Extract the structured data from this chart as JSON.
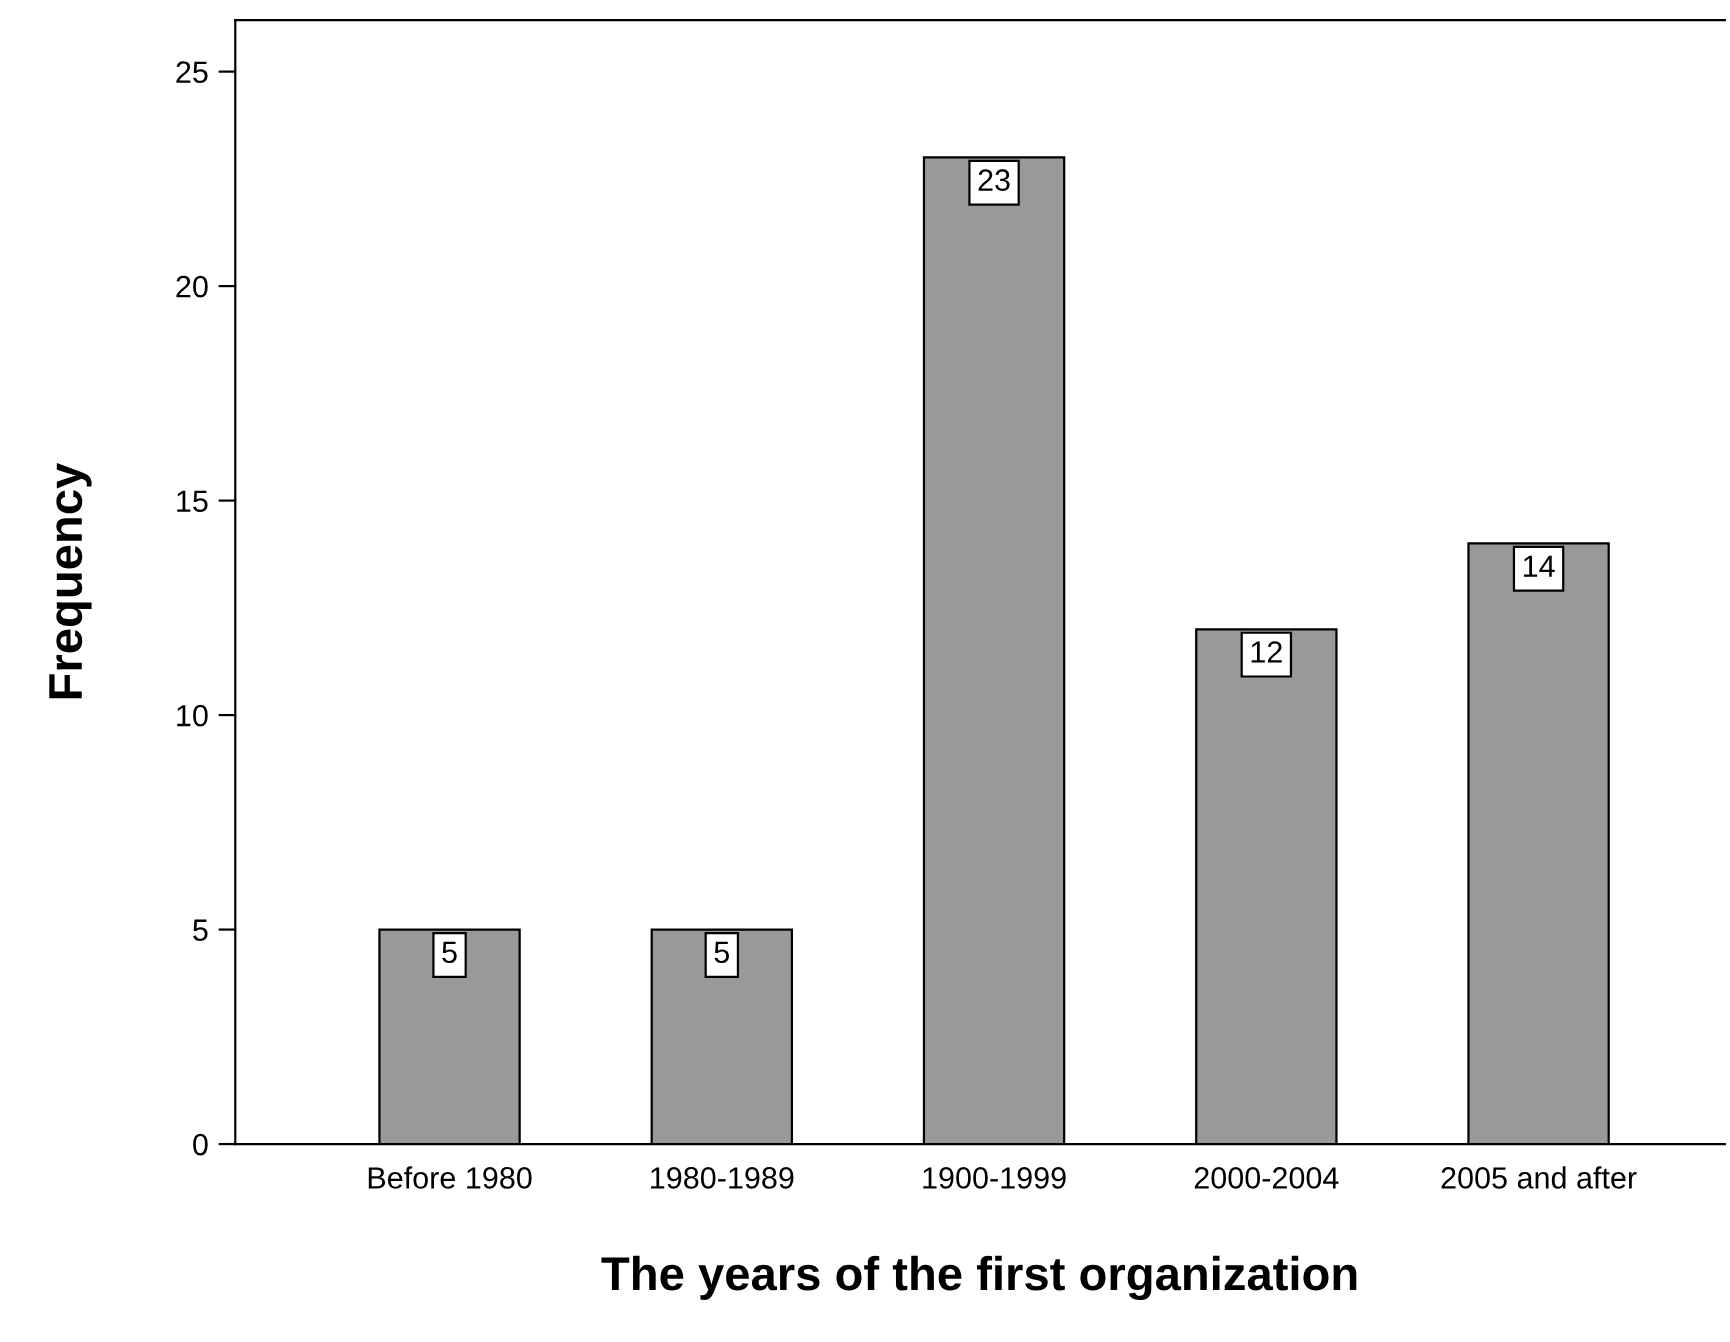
{
  "chart_data": {
    "type": "bar",
    "xlabel": "The years of the first organization",
    "ylabel": "Frequency",
    "categories": [
      "Before 1980",
      "1980-1989",
      "1900-1999",
      "2000-2004",
      "2005 and after"
    ],
    "values": [
      5,
      5,
      23,
      12,
      14
    ],
    "color": "#999999",
    "ylim": [
      0,
      26.2
    ],
    "yticks": [
      0,
      5,
      10,
      15,
      20,
      25
    ],
    "grid": false,
    "data_labels": true
  }
}
